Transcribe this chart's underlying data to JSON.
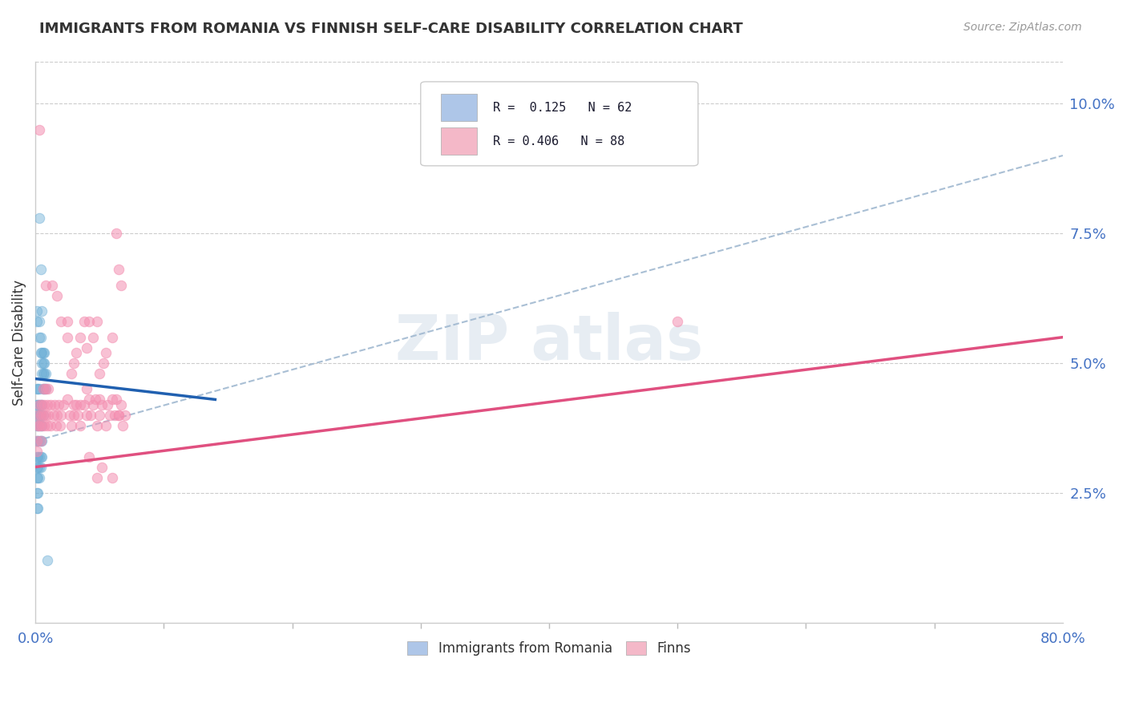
{
  "title": "IMMIGRANTS FROM ROMANIA VS FINNISH SELF-CARE DISABILITY CORRELATION CHART",
  "source": "Source: ZipAtlas.com",
  "ylabel": "Self-Care Disability",
  "right_yticks": [
    "2.5%",
    "5.0%",
    "7.5%",
    "10.0%"
  ],
  "right_ytick_vals": [
    0.025,
    0.05,
    0.075,
    0.1
  ],
  "romania_color": "#6baed6",
  "finns_color": "#f48fb1",
  "romania_color_fill": "#aec6e8",
  "finns_color_fill": "#f4b8c8",
  "xlim": [
    0.0,
    0.8
  ],
  "ylim": [
    0.0,
    0.108
  ],
  "romania_line": {
    "x0": 0.0,
    "y0": 0.047,
    "x1": 0.14,
    "y1": 0.043
  },
  "finns_line": {
    "x0": 0.0,
    "y0": 0.03,
    "x1": 0.8,
    "y1": 0.055
  },
  "dashed_line": {
    "x0": 0.0,
    "y0": 0.035,
    "x1": 0.8,
    "y1": 0.09
  },
  "romania_scatter": [
    [
      0.001,
      0.06
    ],
    [
      0.001,
      0.058
    ],
    [
      0.003,
      0.078
    ],
    [
      0.004,
      0.068
    ],
    [
      0.003,
      0.058
    ],
    [
      0.003,
      0.055
    ],
    [
      0.004,
      0.055
    ],
    [
      0.004,
      0.052
    ],
    [
      0.005,
      0.052
    ],
    [
      0.005,
      0.05
    ],
    [
      0.005,
      0.048
    ],
    [
      0.005,
      0.06
    ],
    [
      0.006,
      0.05
    ],
    [
      0.006,
      0.048
    ],
    [
      0.006,
      0.052
    ],
    [
      0.006,
      0.045
    ],
    [
      0.007,
      0.048
    ],
    [
      0.007,
      0.052
    ],
    [
      0.007,
      0.045
    ],
    [
      0.007,
      0.05
    ],
    [
      0.008,
      0.048
    ],
    [
      0.008,
      0.045
    ],
    [
      0.001,
      0.045
    ],
    [
      0.001,
      0.042
    ],
    [
      0.001,
      0.04
    ],
    [
      0.001,
      0.038
    ],
    [
      0.001,
      0.035
    ],
    [
      0.001,
      0.032
    ],
    [
      0.001,
      0.03
    ],
    [
      0.001,
      0.028
    ],
    [
      0.001,
      0.025
    ],
    [
      0.001,
      0.022
    ],
    [
      0.002,
      0.045
    ],
    [
      0.002,
      0.042
    ],
    [
      0.002,
      0.04
    ],
    [
      0.002,
      0.038
    ],
    [
      0.002,
      0.035
    ],
    [
      0.002,
      0.032
    ],
    [
      0.002,
      0.03
    ],
    [
      0.002,
      0.028
    ],
    [
      0.002,
      0.025
    ],
    [
      0.002,
      0.022
    ],
    [
      0.003,
      0.045
    ],
    [
      0.003,
      0.042
    ],
    [
      0.003,
      0.04
    ],
    [
      0.003,
      0.038
    ],
    [
      0.003,
      0.035
    ],
    [
      0.003,
      0.032
    ],
    [
      0.003,
      0.03
    ],
    [
      0.003,
      0.028
    ],
    [
      0.004,
      0.042
    ],
    [
      0.004,
      0.04
    ],
    [
      0.004,
      0.038
    ],
    [
      0.004,
      0.035
    ],
    [
      0.004,
      0.032
    ],
    [
      0.004,
      0.03
    ],
    [
      0.005,
      0.042
    ],
    [
      0.005,
      0.038
    ],
    [
      0.005,
      0.035
    ],
    [
      0.005,
      0.032
    ],
    [
      0.006,
      0.04
    ],
    [
      0.009,
      0.012
    ]
  ],
  "finns_scatter": [
    [
      0.001,
      0.035
    ],
    [
      0.001,
      0.033
    ],
    [
      0.002,
      0.038
    ],
    [
      0.002,
      0.04
    ],
    [
      0.003,
      0.042
    ],
    [
      0.003,
      0.038
    ],
    [
      0.004,
      0.035
    ],
    [
      0.004,
      0.04
    ],
    [
      0.005,
      0.042
    ],
    [
      0.005,
      0.038
    ],
    [
      0.006,
      0.04
    ],
    [
      0.006,
      0.045
    ],
    [
      0.007,
      0.038
    ],
    [
      0.007,
      0.042
    ],
    [
      0.008,
      0.04
    ],
    [
      0.008,
      0.045
    ],
    [
      0.009,
      0.038
    ],
    [
      0.009,
      0.042
    ],
    [
      0.01,
      0.04
    ],
    [
      0.01,
      0.045
    ],
    [
      0.012,
      0.038
    ],
    [
      0.012,
      0.042
    ],
    [
      0.014,
      0.04
    ],
    [
      0.015,
      0.042
    ],
    [
      0.016,
      0.038
    ],
    [
      0.017,
      0.04
    ],
    [
      0.018,
      0.042
    ],
    [
      0.019,
      0.038
    ],
    [
      0.02,
      0.04
    ],
    [
      0.022,
      0.042
    ],
    [
      0.025,
      0.043
    ],
    [
      0.027,
      0.04
    ],
    [
      0.028,
      0.038
    ],
    [
      0.03,
      0.042
    ],
    [
      0.03,
      0.04
    ],
    [
      0.032,
      0.042
    ],
    [
      0.033,
      0.04
    ],
    [
      0.035,
      0.042
    ],
    [
      0.035,
      0.038
    ],
    [
      0.038,
      0.042
    ],
    [
      0.04,
      0.04
    ],
    [
      0.04,
      0.045
    ],
    [
      0.042,
      0.043
    ],
    [
      0.043,
      0.04
    ],
    [
      0.045,
      0.042
    ],
    [
      0.047,
      0.043
    ],
    [
      0.048,
      0.038
    ],
    [
      0.05,
      0.043
    ],
    [
      0.05,
      0.04
    ],
    [
      0.052,
      0.042
    ],
    [
      0.055,
      0.038
    ],
    [
      0.056,
      0.042
    ],
    [
      0.058,
      0.04
    ],
    [
      0.06,
      0.043
    ],
    [
      0.062,
      0.04
    ],
    [
      0.063,
      0.043
    ],
    [
      0.065,
      0.04
    ],
    [
      0.067,
      0.042
    ],
    [
      0.068,
      0.038
    ],
    [
      0.07,
      0.04
    ],
    [
      0.003,
      0.095
    ],
    [
      0.008,
      0.065
    ],
    [
      0.013,
      0.065
    ],
    [
      0.017,
      0.063
    ],
    [
      0.02,
      0.058
    ],
    [
      0.025,
      0.058
    ],
    [
      0.025,
      0.055
    ],
    [
      0.03,
      0.05
    ],
    [
      0.028,
      0.048
    ],
    [
      0.032,
      0.052
    ],
    [
      0.035,
      0.055
    ],
    [
      0.038,
      0.058
    ],
    [
      0.04,
      0.053
    ],
    [
      0.042,
      0.058
    ],
    [
      0.045,
      0.055
    ],
    [
      0.048,
      0.058
    ],
    [
      0.05,
      0.048
    ],
    [
      0.053,
      0.05
    ],
    [
      0.055,
      0.052
    ],
    [
      0.06,
      0.055
    ],
    [
      0.063,
      0.075
    ],
    [
      0.065,
      0.068
    ],
    [
      0.067,
      0.065
    ],
    [
      0.042,
      0.032
    ],
    [
      0.048,
      0.028
    ],
    [
      0.052,
      0.03
    ],
    [
      0.06,
      0.028
    ],
    [
      0.5,
      0.058
    ],
    [
      0.065,
      0.04
    ]
  ]
}
